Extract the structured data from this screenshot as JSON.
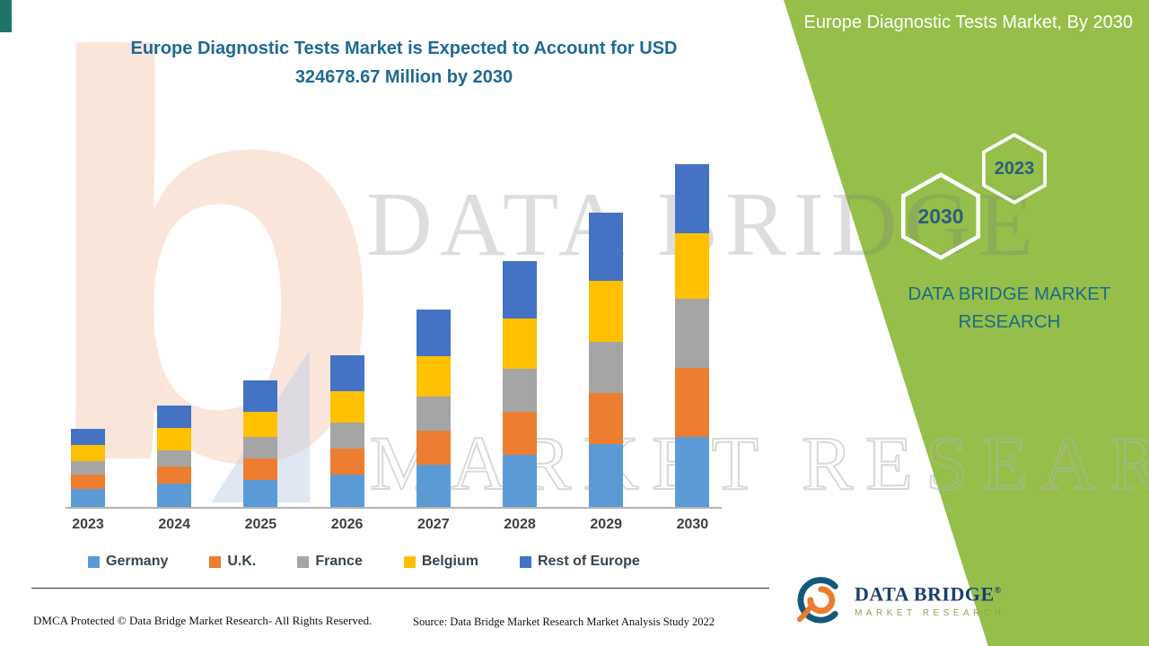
{
  "page": {
    "accent_green": "#96BE4B",
    "title_color": "#1E6A94"
  },
  "header": {
    "title_line1": "Europe Diagnostic Tests Market is Expected to Account for USD",
    "title_line2": "324678.67 Million by 2030"
  },
  "side_panel": {
    "title": "Europe Diagnostic Tests Market, By 2030",
    "hexagon_back_label": "2030",
    "hexagon_front_label": "2023",
    "brand_name": "DATA BRIDGE MARKET RESEARCH"
  },
  "watermarks": {
    "big_letter": "b",
    "line1": "DATA BRIDGE",
    "line2": "MARKET RESEARCH"
  },
  "footer": {
    "dmca": "DMCA Protected © Data Bridge Market Research- All Rights Reserved.",
    "source": "Source: Data Bridge Market Research Market Analysis Study 2022"
  },
  "logo": {
    "line1": "DATA BRIDGE",
    "reg_mark": "®",
    "line2": "MARKET RESEARCH"
  },
  "chart_data": {
    "type": "bar",
    "stacked": true,
    "title": "Europe Diagnostic Tests Market is Expected to Account for USD 324678.67 Million by 2030",
    "unit": "USD Million",
    "categories": [
      "2023",
      "2024",
      "2025",
      "2026",
      "2027",
      "2028",
      "2029",
      "2030"
    ],
    "series": [
      {
        "name": "Germany",
        "color": "#5B9BD5",
        "values": [
          17000,
          22100,
          25500,
          30600,
          39950,
          49300,
          59500,
          66300
        ]
      },
      {
        "name": "U.K.",
        "color": "#ED7D31",
        "values": [
          13600,
          16150,
          20400,
          24650,
          32300,
          40800,
          48450,
          65450
        ]
      },
      {
        "name": "France",
        "color": "#A5A5A5",
        "values": [
          12750,
          15300,
          20400,
          24650,
          32300,
          40800,
          48450,
          65450
        ]
      },
      {
        "name": "Belgium",
        "color": "#FFC000",
        "values": [
          15300,
          21250,
          23800,
          29750,
          38250,
          47600,
          57800,
          62050
        ]
      },
      {
        "name": "Rest of Europe",
        "color": "#4472C4",
        "values": [
          15300,
          21250,
          29750,
          33980,
          44180,
          54370,
          64570,
          65428.67
        ]
      }
    ],
    "totals": [
      73950,
      96050,
      119850,
      143630,
      186980,
      232870,
      278770,
      324678.67
    ],
    "ylim": [
      0,
      330000
    ],
    "yticks_visible": false,
    "grid": false,
    "legend_position": "bottom",
    "xlabel": "",
    "ylabel": ""
  }
}
